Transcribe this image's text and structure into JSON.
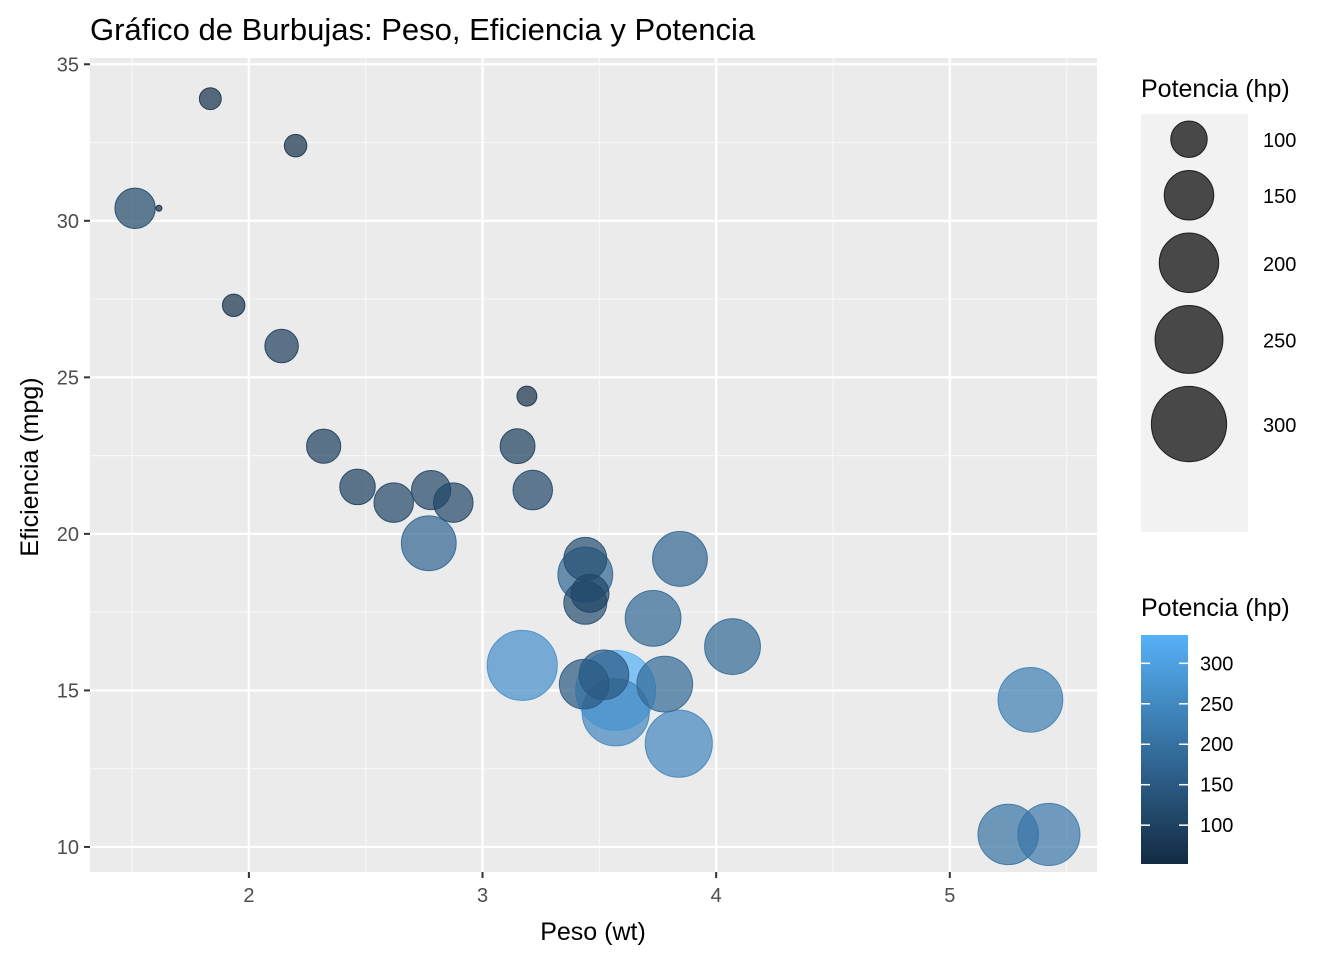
{
  "chart_data": {
    "type": "scatter",
    "title": "Gráfico de Burbujas: Peso, Eficiencia y Potencia",
    "xlabel": "Peso (wt)",
    "ylabel": "Eficiencia (mpg)",
    "xlim": [
      1.32,
      5.63
    ],
    "ylim": [
      9.2,
      35.2
    ],
    "x_ticks": [
      2,
      3,
      4,
      5
    ],
    "y_ticks": [
      10,
      15,
      20,
      25,
      30,
      35
    ],
    "grid": true,
    "legend_position": "right",
    "size_legend": {
      "title": "Potencia (hp)",
      "entries": [
        100,
        150,
        200,
        250,
        300
      ]
    },
    "color_legend": {
      "title": "Potencia (hp)",
      "ticks": [
        100,
        150,
        200,
        250,
        300
      ],
      "range": [
        52,
        335
      ],
      "low_color": "#132B43",
      "high_color": "#56B1F7"
    },
    "points": [
      {
        "x": 2.62,
        "y": 21.0,
        "hp": 110
      },
      {
        "x": 2.875,
        "y": 21.0,
        "hp": 110
      },
      {
        "x": 2.32,
        "y": 22.8,
        "hp": 93
      },
      {
        "x": 3.215,
        "y": 21.4,
        "hp": 110
      },
      {
        "x": 3.44,
        "y": 18.7,
        "hp": 175
      },
      {
        "x": 3.46,
        "y": 18.1,
        "hp": 105
      },
      {
        "x": 3.57,
        "y": 14.3,
        "hp": 245
      },
      {
        "x": 3.19,
        "y": 24.4,
        "hp": 62
      },
      {
        "x": 3.15,
        "y": 22.8,
        "hp": 95
      },
      {
        "x": 3.44,
        "y": 19.2,
        "hp": 123
      },
      {
        "x": 3.44,
        "y": 17.8,
        "hp": 123
      },
      {
        "x": 4.07,
        "y": 16.4,
        "hp": 180
      },
      {
        "x": 3.73,
        "y": 17.3,
        "hp": 180
      },
      {
        "x": 3.78,
        "y": 15.2,
        "hp": 180
      },
      {
        "x": 5.25,
        "y": 10.4,
        "hp": 205
      },
      {
        "x": 5.424,
        "y": 10.4,
        "hp": 215
      },
      {
        "x": 5.345,
        "y": 14.7,
        "hp": 230
      },
      {
        "x": 2.2,
        "y": 32.4,
        "hp": 66
      },
      {
        "x": 1.615,
        "y": 30.4,
        "hp": 52
      },
      {
        "x": 1.835,
        "y": 33.9,
        "hp": 65
      },
      {
        "x": 2.465,
        "y": 21.5,
        "hp": 97
      },
      {
        "x": 3.52,
        "y": 15.5,
        "hp": 150
      },
      {
        "x": 3.435,
        "y": 15.2,
        "hp": 150
      },
      {
        "x": 3.84,
        "y": 13.3,
        "hp": 245
      },
      {
        "x": 3.845,
        "y": 19.2,
        "hp": 175
      },
      {
        "x": 1.935,
        "y": 27.3,
        "hp": 66
      },
      {
        "x": 2.14,
        "y": 26.0,
        "hp": 91
      },
      {
        "x": 1.513,
        "y": 30.4,
        "hp": 113
      },
      {
        "x": 3.17,
        "y": 15.8,
        "hp": 264
      },
      {
        "x": 2.77,
        "y": 19.7,
        "hp": 175
      },
      {
        "x": 3.57,
        "y": 15.0,
        "hp": 335
      },
      {
        "x": 2.78,
        "y": 21.4,
        "hp": 109
      }
    ]
  }
}
